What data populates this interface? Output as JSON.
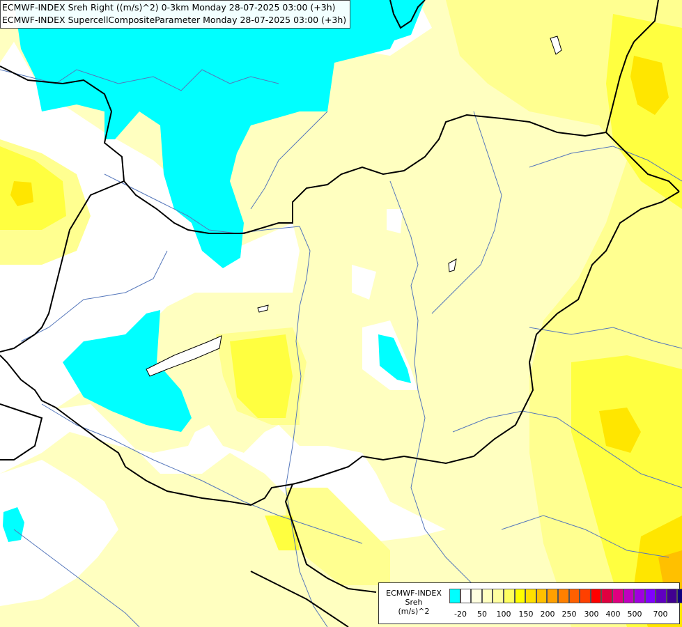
{
  "titles": [
    "ECMWF-INDEX Sreh Right ((m/s)^2) 0-3km Monday 28-07-2025 03:00 (+3h)",
    "ECMWF-INDEX SupercellCompositeParameter Monday 28-07-2025 03:00 (+3h)"
  ],
  "legend": {
    "line1": "ECMWF-INDEX",
    "line2": "Sreh",
    "line3": "(m/s)^2",
    "colors": [
      "#00ffff",
      "#ffffff",
      "#ffffe0",
      "#ffffc0",
      "#ffffa0",
      "#ffff60",
      "#ffff00",
      "#ffe000",
      "#ffc000",
      "#ffa000",
      "#ff8000",
      "#ff6000",
      "#ff4000",
      "#ff0000",
      "#e00040",
      "#e00080",
      "#c000c0",
      "#a000e0",
      "#8000ff",
      "#6000c0",
      "#400090",
      "#100080"
    ],
    "ticks": [
      "-20",
      "50",
      "100",
      "150",
      "200",
      "250",
      "300",
      "400",
      "500",
      "700"
    ]
  },
  "colors": {
    "cyan": "#00ffff",
    "white": "#ffffff",
    "pale_yellow": "#ffffc0",
    "light_yellow": "#ffff90",
    "yellow": "#ffff30",
    "deep_yellow": "#ffe600",
    "orange_yellow": "#ffd000",
    "border": "#000000",
    "river": "#5577bb"
  }
}
